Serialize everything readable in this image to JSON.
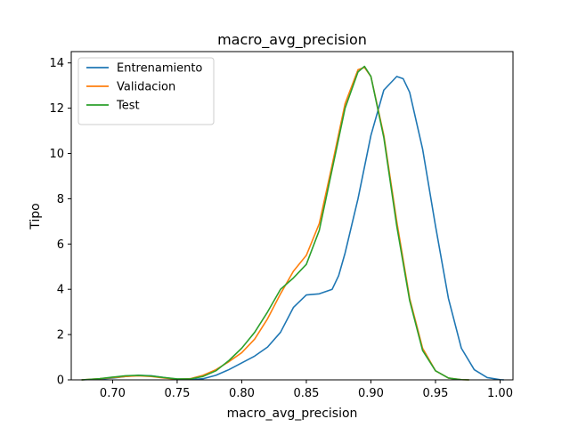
{
  "chart_data": {
    "type": "line",
    "title": "macro_avg_precision",
    "xlabel": "macro_avg_precision",
    "ylabel": "Tipo",
    "xlim": [
      0.668,
      1.01
    ],
    "ylim": [
      0,
      14.5
    ],
    "xticks": [
      0.7,
      0.75,
      0.8,
      0.85,
      0.9,
      0.95,
      1.0
    ],
    "xtick_labels": [
      "0.70",
      "0.75",
      "0.80",
      "0.85",
      "0.90",
      "0.95",
      "1.00"
    ],
    "yticks": [
      0,
      2,
      4,
      6,
      8,
      10,
      12,
      14
    ],
    "ytick_labels": [
      "0",
      "2",
      "4",
      "6",
      "8",
      "10",
      "12",
      "14"
    ],
    "grid": false,
    "legend_position": "top-left",
    "series": [
      {
        "name": "Entrenamiento",
        "color": "#1f77b4",
        "x": [
          0.676,
          0.69,
          0.7,
          0.71,
          0.72,
          0.73,
          0.74,
          0.75,
          0.76,
          0.77,
          0.78,
          0.79,
          0.8,
          0.81,
          0.82,
          0.83,
          0.84,
          0.85,
          0.86,
          0.87,
          0.875,
          0.88,
          0.89,
          0.9,
          0.91,
          0.92,
          0.925,
          0.93,
          0.94,
          0.95,
          0.96,
          0.97,
          0.98,
          0.99,
          1.0,
          1.003
        ],
        "y": [
          0.0,
          0.03,
          0.08,
          0.15,
          0.2,
          0.18,
          0.1,
          0.03,
          0.01,
          0.05,
          0.2,
          0.45,
          0.75,
          1.05,
          1.45,
          2.1,
          3.2,
          3.75,
          3.8,
          4.0,
          4.6,
          5.6,
          8.0,
          10.8,
          12.8,
          13.4,
          13.3,
          12.7,
          10.2,
          6.8,
          3.6,
          1.4,
          0.45,
          0.1,
          0.01,
          0.0
        ]
      },
      {
        "name": "Validacion",
        "color": "#ff7f0e",
        "x": [
          0.676,
          0.69,
          0.7,
          0.71,
          0.72,
          0.73,
          0.74,
          0.75,
          0.76,
          0.77,
          0.78,
          0.79,
          0.8,
          0.81,
          0.82,
          0.83,
          0.84,
          0.85,
          0.86,
          0.87,
          0.88,
          0.89,
          0.895,
          0.9,
          0.91,
          0.92,
          0.93,
          0.94,
          0.95,
          0.96,
          0.97,
          0.976
        ],
        "y": [
          0.0,
          0.05,
          0.1,
          0.15,
          0.18,
          0.15,
          0.08,
          0.03,
          0.05,
          0.2,
          0.45,
          0.8,
          1.2,
          1.8,
          2.7,
          3.8,
          4.8,
          5.5,
          6.9,
          9.5,
          12.2,
          13.7,
          13.8,
          13.4,
          10.8,
          7.0,
          3.6,
          1.4,
          0.4,
          0.08,
          0.01,
          0.0
        ]
      },
      {
        "name": "Test",
        "color": "#2ca02c",
        "x": [
          0.676,
          0.69,
          0.7,
          0.71,
          0.72,
          0.73,
          0.74,
          0.75,
          0.76,
          0.77,
          0.78,
          0.79,
          0.8,
          0.81,
          0.82,
          0.83,
          0.84,
          0.85,
          0.86,
          0.87,
          0.88,
          0.89,
          0.895,
          0.9,
          0.91,
          0.92,
          0.93,
          0.94,
          0.95,
          0.96,
          0.97,
          0.976
        ],
        "y": [
          0.0,
          0.05,
          0.12,
          0.18,
          0.2,
          0.17,
          0.1,
          0.04,
          0.04,
          0.15,
          0.4,
          0.85,
          1.4,
          2.1,
          3.0,
          4.0,
          4.5,
          5.1,
          6.6,
          9.3,
          12.0,
          13.6,
          13.85,
          13.4,
          10.7,
          6.8,
          3.5,
          1.3,
          0.4,
          0.08,
          0.01,
          0.0
        ]
      }
    ]
  }
}
